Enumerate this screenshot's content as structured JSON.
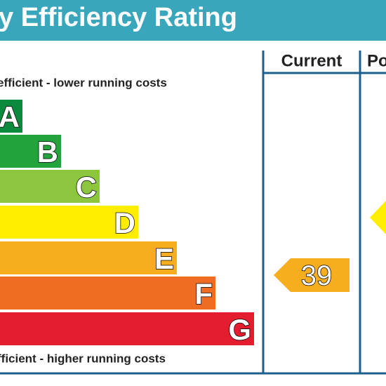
{
  "header": {
    "title": "y Efficiency Rating"
  },
  "columns": [
    "Current",
    "Po"
  ],
  "top_note": "efficient - lower running costs",
  "bottom_note": "fficient - higher running costs",
  "bands": [
    "A",
    "B",
    "C",
    "D",
    "E",
    "F",
    "G"
  ],
  "current_rating": "39"
}
